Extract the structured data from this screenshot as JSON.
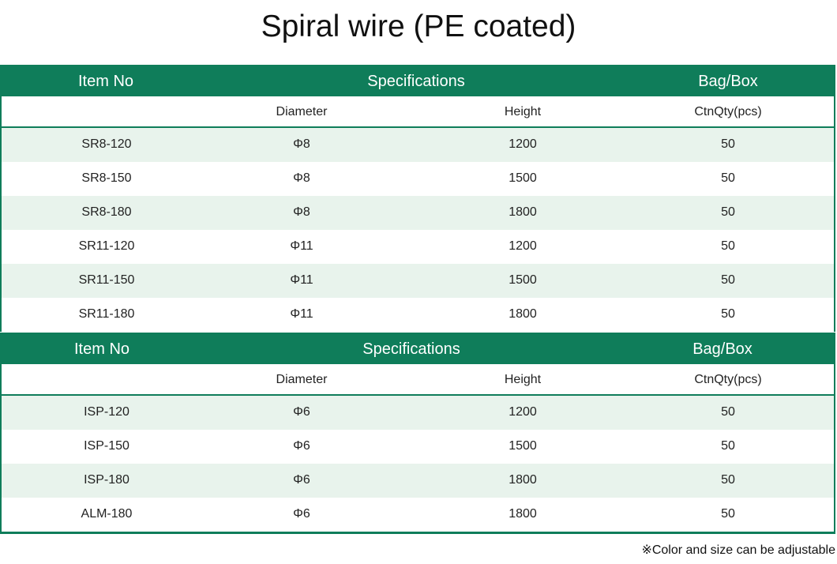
{
  "title": "Spiral wire (PE coated)",
  "header": {
    "item_no": "Item No",
    "specifications": "Specifications",
    "bag_box": "Bag/Box"
  },
  "subheader": {
    "diameter": "Diameter",
    "height": "Height",
    "ctn_qty": "CtnQty(pcs)"
  },
  "table1": [
    {
      "item": "SR8-120",
      "diameter": "Φ8",
      "height": "1200",
      "qty": "50"
    },
    {
      "item": "SR8-150",
      "diameter": "Φ8",
      "height": "1500",
      "qty": "50"
    },
    {
      "item": "SR8-180",
      "diameter": "Φ8",
      "height": "1800",
      "qty": "50"
    },
    {
      "item": "SR11-120",
      "diameter": "Φ11",
      "height": "1200",
      "qty": "50"
    },
    {
      "item": "SR11-150",
      "diameter": "Φ11",
      "height": "1500",
      "qty": "50"
    },
    {
      "item": "SR11-180",
      "diameter": "Φ11",
      "height": "1800",
      "qty": "50"
    }
  ],
  "table2": [
    {
      "item": "ISP-120",
      "diameter": "Φ6",
      "height": "1200",
      "qty": "50"
    },
    {
      "item": "ISP-150",
      "diameter": "Φ6",
      "height": "1500",
      "qty": "50"
    },
    {
      "item": "ISP-180",
      "diameter": "Φ6",
      "height": "1800",
      "qty": "50"
    },
    {
      "item": "ALM-180",
      "diameter": "Φ6",
      "height": "1800",
      "qty": "50"
    }
  ],
  "note": "※Color and size can be adjustable",
  "colors": {
    "accent": "#0f7d5a",
    "row_shade": "#e8f3ec"
  }
}
